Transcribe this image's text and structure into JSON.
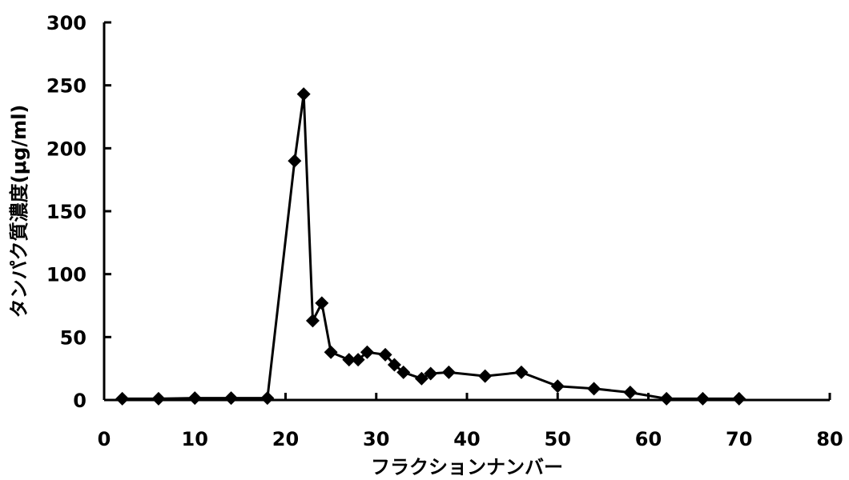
{
  "chart_data": {
    "type": "line",
    "title": "",
    "xlabel": "フラクションナンバー",
    "ylabel": "タンパク質濃度(μg/ml)",
    "xlim": [
      0,
      80
    ],
    "ylim": [
      0,
      300
    ],
    "x_ticks": [
      0,
      10,
      20,
      30,
      40,
      50,
      60,
      70,
      80
    ],
    "y_ticks": [
      0,
      50,
      100,
      150,
      200,
      250,
      300
    ],
    "grid": false,
    "legend": "none",
    "marker": "diamond",
    "colors": {
      "line": "#000000",
      "marker": "#000000"
    },
    "series": [
      {
        "x": [
          2,
          6,
          10,
          14,
          18,
          21,
          22,
          23,
          24,
          25,
          27,
          28,
          29,
          31,
          32,
          33,
          35,
          36,
          38,
          42,
          46,
          50,
          54,
          58,
          62,
          66,
          70
        ],
        "y": [
          1,
          1,
          1.5,
          1.5,
          1.5,
          190,
          243,
          63,
          77,
          38,
          32,
          32,
          38,
          36,
          28,
          22,
          17,
          21,
          22,
          19,
          22,
          11,
          9,
          6,
          1,
          1,
          1
        ]
      }
    ]
  }
}
